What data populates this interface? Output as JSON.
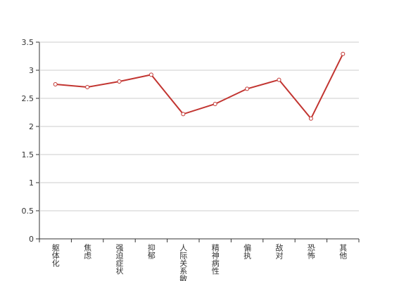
{
  "chart_data": {
    "type": "line",
    "categories": [
      "躯体化",
      "焦虑",
      "强迫症状",
      "抑郁",
      "人际关系敏感",
      "精神病性",
      "偏执",
      "敌对",
      "恐怖",
      "其他"
    ],
    "series": [
      {
        "color": "#c23531",
        "values": [
          2.75,
          2.7,
          2.8,
          2.92,
          2.22,
          2.4,
          2.67,
          2.83,
          2.14,
          3.29
        ]
      }
    ],
    "ylim": [
      0,
      3.5
    ],
    "yticks": [
      0,
      0.5,
      1,
      1.5,
      2,
      2.5,
      3,
      3.5
    ],
    "grid": true
  }
}
